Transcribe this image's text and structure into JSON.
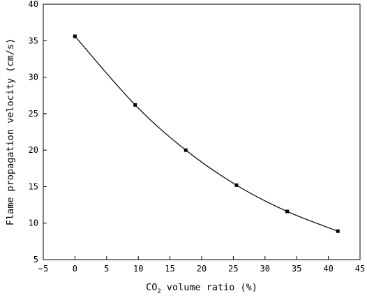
{
  "chart_data": {
    "type": "line",
    "title": "",
    "xlabel_main": "CO",
    "xlabel_sub": "2",
    "xlabel_rest": " volume ratio (%)",
    "ylabel": "Flame propagation velocity (cm/s)",
    "xlim": [
      -5,
      45
    ],
    "ylim": [
      5,
      40
    ],
    "xticks": [
      "−5",
      "0",
      "5",
      "10",
      "15",
      "20",
      "25",
      "30",
      "35",
      "40",
      "45"
    ],
    "xtick_values": [
      -5,
      0,
      5,
      10,
      15,
      20,
      25,
      30,
      35,
      40,
      45
    ],
    "yticks": [
      "5",
      "10",
      "15",
      "20",
      "25",
      "30",
      "35",
      "40"
    ],
    "ytick_values": [
      5,
      10,
      15,
      20,
      25,
      30,
      35,
      40
    ],
    "grid": false,
    "marker": "square",
    "line_color": "#000000",
    "series": [
      {
        "x": [
          0,
          9.5,
          17.5,
          25.5,
          33.5,
          41.5
        ],
        "y": [
          35.6,
          26.2,
          20.0,
          15.2,
          11.6,
          8.9
        ]
      }
    ]
  }
}
